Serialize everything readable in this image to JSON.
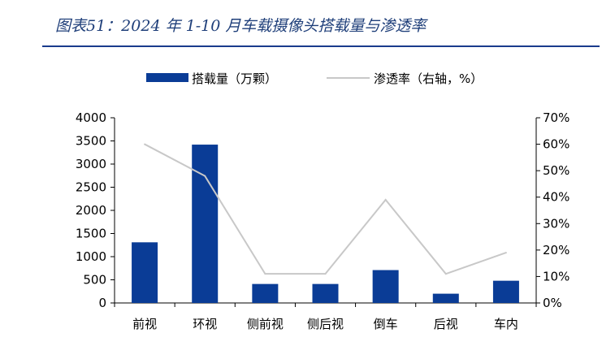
{
  "header": {
    "title": "图表51：2024 年 1-10 月车载摄像头搭载量与渗透率"
  },
  "chart_data": {
    "type": "bar",
    "categories": [
      "前视",
      "环视",
      "侧前视",
      "侧后视",
      "倒车",
      "后视",
      "车内"
    ],
    "series": [
      {
        "name": "搭载量（万颗）",
        "kind": "bar",
        "axis": "left",
        "color": "#0a3c96",
        "values": [
          1310,
          3420,
          410,
          410,
          710,
          200,
          480
        ]
      },
      {
        "name": "渗透率（右轴，%）",
        "kind": "line",
        "axis": "right",
        "color": "#c8c8c8",
        "values": [
          60,
          48,
          11,
          11,
          39,
          11,
          19
        ]
      }
    ],
    "y_left": {
      "min": 0,
      "max": 4000,
      "step": 500
    },
    "y_right": {
      "min": 0,
      "max": 70,
      "step": 10,
      "suffix": "%"
    },
    "legend": "top-center",
    "grid": false
  }
}
